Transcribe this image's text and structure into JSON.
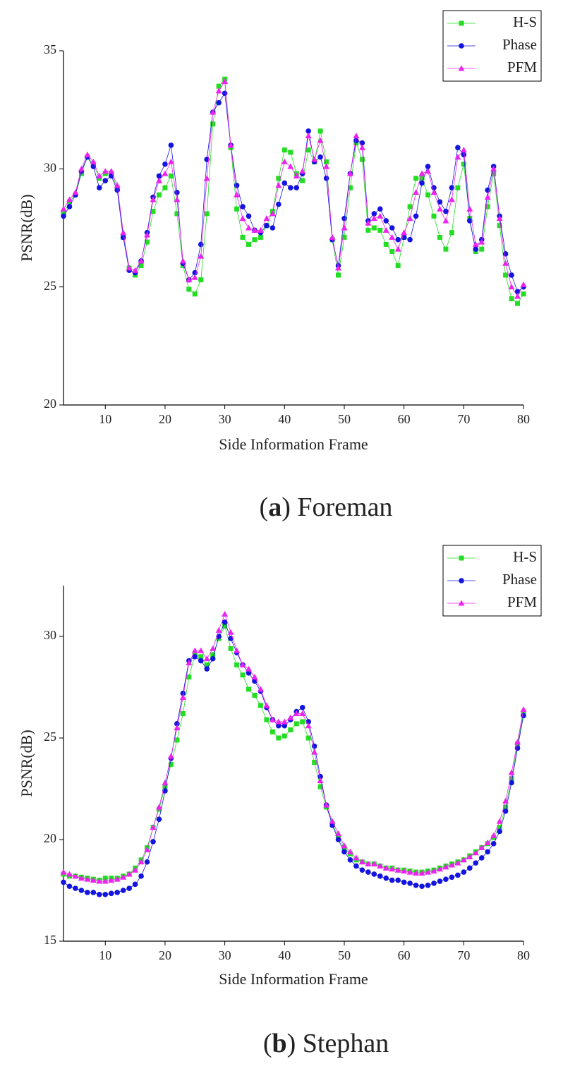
{
  "chart_data": [
    {
      "type": "line",
      "x_label": "Side Information Frame",
      "y_label": "PSNR(dB)",
      "caption": [
        "(",
        "a",
        ") Foreman"
      ],
      "x": [
        3,
        4,
        5,
        6,
        7,
        8,
        9,
        10,
        11,
        12,
        13,
        14,
        15,
        16,
        17,
        18,
        19,
        20,
        21,
        22,
        23,
        24,
        25,
        26,
        27,
        28,
        29,
        30,
        31,
        32,
        33,
        34,
        35,
        36,
        37,
        38,
        39,
        40,
        41,
        42,
        43,
        44,
        45,
        46,
        47,
        48,
        49,
        50,
        51,
        52,
        53,
        54,
        55,
        56,
        57,
        58,
        59,
        60,
        61,
        62,
        63,
        64,
        65,
        66,
        67,
        68,
        69,
        70,
        71,
        72,
        73,
        74,
        75,
        76,
        77,
        78,
        79,
        80
      ],
      "xlim": [
        3,
        80
      ],
      "xticks": [
        10,
        20,
        30,
        40,
        50,
        60,
        70,
        80
      ],
      "ylim": [
        20,
        35
      ],
      "yticks": [
        20,
        25,
        30,
        35
      ],
      "legend": "upper right",
      "series": [
        {
          "name": "H-S",
          "color": "#22dd22",
          "marker": "square",
          "values": [
            28.1,
            28.6,
            28.9,
            29.8,
            30.5,
            30.2,
            29.6,
            29.8,
            29.8,
            29.2,
            27.1,
            25.8,
            25.5,
            25.9,
            26.9,
            28.2,
            28.9,
            29.2,
            29.7,
            28.1,
            25.9,
            24.9,
            24.7,
            25.3,
            28.1,
            31.9,
            33.5,
            33.8,
            30.9,
            28.3,
            27.1,
            26.8,
            27.0,
            27.1,
            27.6,
            28.2,
            29.6,
            30.8,
            30.7,
            29.8,
            29.5,
            30.8,
            30.3,
            31.6,
            30.3,
            27.0,
            25.5,
            27.1,
            29.2,
            31.1,
            30.4,
            27.4,
            27.5,
            27.4,
            26.8,
            26.5,
            25.9,
            27.1,
            28.4,
            29.6,
            29.6,
            28.9,
            28.0,
            27.1,
            26.6,
            27.3,
            29.2,
            30.2,
            27.9,
            26.5,
            26.6,
            28.4,
            29.8,
            27.6,
            25.5,
            24.5,
            24.3,
            24.7
          ]
        },
        {
          "name": "Phase",
          "color": "#1414e0",
          "marker": "circle",
          "values": [
            28.0,
            28.4,
            28.9,
            29.9,
            30.5,
            30.1,
            29.2,
            29.5,
            29.7,
            29.1,
            27.1,
            25.7,
            25.6,
            26.1,
            27.3,
            28.8,
            29.7,
            30.2,
            31.0,
            29.0,
            26.0,
            25.3,
            25.6,
            26.8,
            30.4,
            32.4,
            32.8,
            33.2,
            31.0,
            29.3,
            28.4,
            28.0,
            27.4,
            27.3,
            27.6,
            27.5,
            28.5,
            29.4,
            29.2,
            29.2,
            29.8,
            31.6,
            30.3,
            30.5,
            29.6,
            27.0,
            25.9,
            27.9,
            29.8,
            31.2,
            31.1,
            27.8,
            28.1,
            28.3,
            27.8,
            27.5,
            27.0,
            27.1,
            27.0,
            28.0,
            29.4,
            30.1,
            29.2,
            28.6,
            28.2,
            29.2,
            30.9,
            30.6,
            27.8,
            26.6,
            27.0,
            29.1,
            30.1,
            28.0,
            26.4,
            25.5,
            24.8,
            25.0
          ]
        },
        {
          "name": "PFM",
          "color": "#ee22ee",
          "marker": "triangle",
          "values": [
            28.3,
            28.7,
            29.0,
            30.0,
            30.6,
            30.3,
            29.7,
            29.9,
            29.9,
            29.3,
            27.3,
            25.8,
            25.7,
            26.1,
            27.2,
            28.7,
            29.5,
            29.8,
            30.3,
            28.7,
            26.1,
            25.3,
            25.4,
            26.3,
            29.6,
            32.4,
            33.3,
            33.7,
            31.0,
            28.9,
            27.9,
            27.5,
            27.4,
            27.4,
            27.9,
            28.1,
            29.3,
            30.3,
            30.1,
            29.7,
            29.9,
            31.4,
            30.4,
            31.2,
            30.1,
            27.1,
            25.8,
            27.5,
            29.8,
            31.4,
            30.9,
            27.7,
            27.9,
            28.0,
            27.4,
            27.1,
            26.6,
            27.3,
            27.9,
            29.0,
            29.8,
            29.9,
            29.0,
            28.3,
            27.8,
            28.7,
            30.5,
            30.8,
            28.3,
            26.8,
            26.9,
            28.8,
            30.0,
            27.9,
            26.0,
            25.0,
            24.6,
            25.1
          ]
        }
      ]
    },
    {
      "type": "line",
      "x_label": "Side Information Frame",
      "y_label": "PSNR(dB)",
      "caption": [
        "(",
        "b",
        ") Stephan"
      ],
      "x": [
        3,
        4,
        5,
        6,
        7,
        8,
        9,
        10,
        11,
        12,
        13,
        14,
        15,
        16,
        17,
        18,
        19,
        20,
        21,
        22,
        23,
        24,
        25,
        26,
        27,
        28,
        29,
        30,
        31,
        32,
        33,
        34,
        35,
        36,
        37,
        38,
        39,
        40,
        41,
        42,
        43,
        44,
        45,
        46,
        47,
        48,
        49,
        50,
        51,
        52,
        53,
        54,
        55,
        56,
        57,
        58,
        59,
        60,
        61,
        62,
        63,
        64,
        65,
        66,
        67,
        68,
        69,
        70,
        71,
        72,
        73,
        74,
        75,
        76,
        77,
        78,
        79,
        80
      ],
      "xlim": [
        3,
        80
      ],
      "xticks": [
        10,
        20,
        30,
        40,
        50,
        60,
        70,
        80
      ],
      "ylim": [
        15,
        32.5
      ],
      "yticks": [
        15,
        20,
        25,
        30
      ],
      "legend": "upper right",
      "series": [
        {
          "name": "H-S",
          "color": "#22dd22",
          "marker": "square",
          "values": [
            18.3,
            18.2,
            18.2,
            18.15,
            18.1,
            18.05,
            18.0,
            18.1,
            18.1,
            18.1,
            18.2,
            18.3,
            18.6,
            19.0,
            19.6,
            20.6,
            21.5,
            22.6,
            23.7,
            24.9,
            26.2,
            28.0,
            29.1,
            29.0,
            28.6,
            29.1,
            29.9,
            30.5,
            29.4,
            28.6,
            28.1,
            27.4,
            27.1,
            26.6,
            25.9,
            25.3,
            25.0,
            25.1,
            25.4,
            25.7,
            25.8,
            25.0,
            23.8,
            22.6,
            21.6,
            20.8,
            20.1,
            19.6,
            19.3,
            19.0,
            18.9,
            18.8,
            18.8,
            18.7,
            18.6,
            18.6,
            18.5,
            18.5,
            18.45,
            18.4,
            18.4,
            18.45,
            18.5,
            18.6,
            18.7,
            18.8,
            18.9,
            19.0,
            19.2,
            19.4,
            19.6,
            19.8,
            20.1,
            20.6,
            21.6,
            23.0,
            24.7,
            26.2
          ]
        },
        {
          "name": "Phase",
          "color": "#1414e0",
          "marker": "circle",
          "values": [
            17.9,
            17.7,
            17.6,
            17.5,
            17.4,
            17.4,
            17.3,
            17.3,
            17.35,
            17.4,
            17.5,
            17.6,
            17.8,
            18.2,
            18.9,
            19.9,
            21.0,
            22.4,
            24.0,
            25.7,
            27.2,
            28.8,
            29.0,
            28.8,
            28.4,
            28.9,
            30.0,
            30.7,
            29.9,
            29.2,
            28.6,
            28.2,
            27.8,
            27.3,
            26.5,
            25.9,
            25.6,
            25.6,
            25.9,
            26.3,
            26.5,
            25.8,
            24.6,
            23.1,
            21.7,
            20.7,
            20.0,
            19.4,
            19.0,
            18.7,
            18.5,
            18.4,
            18.3,
            18.2,
            18.1,
            18.0,
            18.0,
            17.9,
            17.85,
            17.75,
            17.7,
            17.75,
            17.85,
            17.95,
            18.05,
            18.15,
            18.25,
            18.4,
            18.6,
            18.85,
            19.1,
            19.4,
            19.8,
            20.4,
            21.4,
            22.8,
            24.5,
            26.1
          ]
        },
        {
          "name": "PFM",
          "color": "#ee22ee",
          "marker": "triangle",
          "values": [
            18.4,
            18.3,
            18.2,
            18.1,
            18.05,
            18.0,
            17.95,
            17.95,
            18.0,
            18.05,
            18.15,
            18.3,
            18.5,
            18.9,
            19.5,
            20.6,
            21.6,
            22.8,
            24.1,
            25.5,
            27.0,
            28.7,
            29.3,
            29.3,
            28.9,
            29.4,
            30.3,
            31.1,
            30.2,
            29.3,
            28.6,
            28.4,
            28.0,
            27.4,
            26.6,
            25.9,
            25.8,
            25.8,
            26.0,
            26.2,
            26.2,
            25.6,
            24.3,
            22.9,
            21.7,
            20.9,
            20.3,
            19.7,
            19.4,
            19.1,
            18.9,
            18.8,
            18.8,
            18.7,
            18.6,
            18.55,
            18.5,
            18.45,
            18.4,
            18.35,
            18.35,
            18.4,
            18.45,
            18.55,
            18.65,
            18.75,
            18.85,
            19.0,
            19.15,
            19.35,
            19.6,
            19.85,
            20.2,
            20.9,
            21.9,
            23.3,
            24.8,
            26.4
          ]
        }
      ]
    }
  ]
}
